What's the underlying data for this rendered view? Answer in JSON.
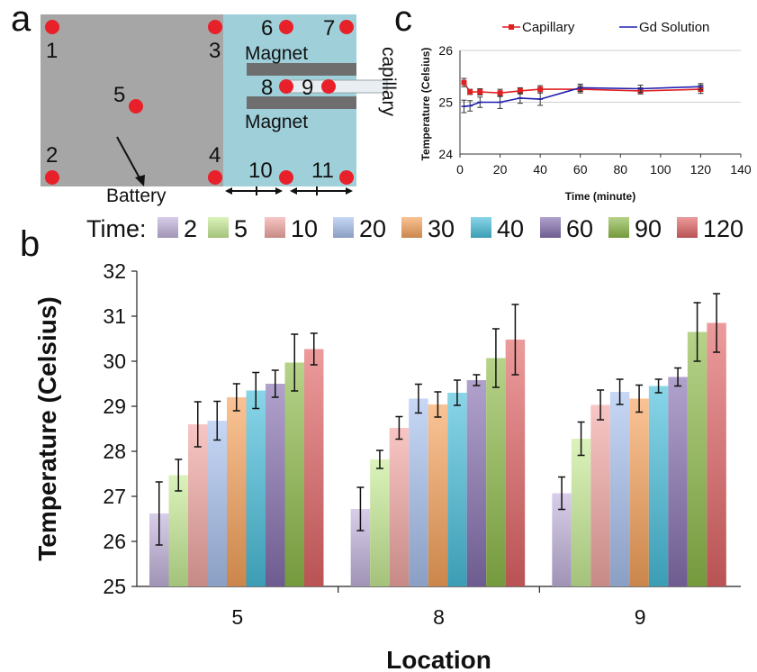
{
  "panels": {
    "a": "a",
    "b": "b",
    "c": "c"
  },
  "diagram": {
    "points": [
      "1",
      "2",
      "3",
      "4",
      "5",
      "6",
      "7",
      "8",
      "9",
      "10",
      "11"
    ],
    "magnet_top": "Magnet",
    "magnet_bottom": "Magnet",
    "capillary": "capillary",
    "battery": "Battery",
    "colors": {
      "gray": "#a6a6a6",
      "blue": "#9fd0da",
      "dot": "#e8202a"
    }
  },
  "legend_b": {
    "prefix": "Time:",
    "labels": [
      "2",
      "5",
      "10",
      "20",
      "30",
      "40",
      "60",
      "90",
      "120"
    ],
    "colors": [
      "#c3b3dd",
      "#c8ec96",
      "#f3a8a4",
      "#a9c2ef",
      "#f7a35c",
      "#49bfdc",
      "#8670b0",
      "#8fbb4a",
      "#e26566"
    ]
  },
  "chart_data": [
    {
      "type": "line",
      "title": "",
      "xlabel": "Time (minute)",
      "ylabel": "Temperature (Celsius)",
      "xlim": [
        0,
        140
      ],
      "ylim": [
        24,
        26
      ],
      "xticks": [
        "0",
        "20",
        "40",
        "60",
        "80",
        "100",
        "120",
        "140"
      ],
      "yticks": [
        "24",
        "25",
        "26"
      ],
      "grid": "y",
      "legend": "top",
      "series": [
        {
          "name": "Capillary",
          "color": "#e02020",
          "x": [
            2,
            5,
            10,
            20,
            30,
            40,
            60,
            90,
            120
          ],
          "y": [
            25.38,
            25.2,
            25.2,
            25.18,
            25.22,
            25.25,
            25.25,
            25.22,
            25.25
          ],
          "err": [
            0.08,
            0.05,
            0.06,
            0.07,
            0.06,
            0.07,
            0.07,
            0.06,
            0.08
          ]
        },
        {
          "name": "Gd Solution",
          "color": "#1f1fb0",
          "x": [
            2,
            5,
            10,
            20,
            30,
            40,
            60,
            90,
            120
          ],
          "y": [
            24.92,
            24.93,
            25.0,
            25.0,
            25.08,
            25.06,
            25.28,
            25.26,
            25.3
          ],
          "err": [
            0.12,
            0.1,
            0.1,
            0.12,
            0.1,
            0.12,
            0.07,
            0.07,
            0.06
          ]
        }
      ]
    },
    {
      "type": "bar",
      "xlabel": "Location",
      "ylabel": "Temperature (Celsius)",
      "ylim": [
        25,
        32
      ],
      "yticks": [
        "25",
        "26",
        "27",
        "28",
        "29",
        "30",
        "31",
        "32"
      ],
      "categories": [
        "5",
        "8",
        "9"
      ],
      "legend": "top",
      "series": [
        {
          "name": "2",
          "values": [
            26.62,
            26.72,
            27.07
          ],
          "err": [
            0.7,
            0.48,
            0.36
          ]
        },
        {
          "name": "5",
          "values": [
            27.47,
            27.82,
            28.28
          ],
          "err": [
            0.35,
            0.2,
            0.37
          ]
        },
        {
          "name": "10",
          "values": [
            28.6,
            28.52,
            29.03
          ],
          "err": [
            0.5,
            0.25,
            0.33
          ]
        },
        {
          "name": "20",
          "values": [
            28.68,
            29.17,
            29.32
          ],
          "err": [
            0.43,
            0.32,
            0.28
          ]
        },
        {
          "name": "30",
          "values": [
            29.2,
            29.04,
            29.17
          ],
          "err": [
            0.3,
            0.28,
            0.3
          ]
        },
        {
          "name": "40",
          "values": [
            29.35,
            29.3,
            29.45
          ],
          "err": [
            0.4,
            0.28,
            0.15
          ]
        },
        {
          "name": "60",
          "values": [
            29.5,
            29.58,
            29.65
          ],
          "err": [
            0.3,
            0.12,
            0.2
          ]
        },
        {
          "name": "90",
          "values": [
            29.97,
            30.07,
            30.65
          ],
          "err": [
            0.63,
            0.65,
            0.65
          ]
        },
        {
          "name": "120",
          "values": [
            30.27,
            30.48,
            30.85
          ],
          "err": [
            0.35,
            0.78,
            0.65
          ]
        }
      ]
    }
  ]
}
